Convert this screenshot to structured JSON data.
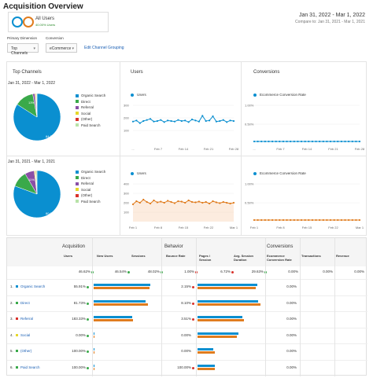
{
  "header": {
    "title": "Acquisition Overview",
    "segment_name": "All Users",
    "segment_sub": "40.00% Users",
    "date_current": "Jan 31, 2022 - Mar 1, 2022",
    "date_compare": "Compare to: Jan 31, 2021 - Mar 1, 2021"
  },
  "controls": {
    "primary_dimension_label": "Primary Dimension",
    "primary_dimension_value": "Top Channels",
    "conversion_label": "Conversion",
    "conversion_value": "eCommerce",
    "edit_link": "Edit Channel Grouping"
  },
  "colors": {
    "blue": "#0a8fd0",
    "orange": "#e07c1e",
    "green": "#3aa94a",
    "light_green": "#8fd06a",
    "purple": "#8a4fa6",
    "yellow": "#e6d82a",
    "red": "#d9322b",
    "pale_green": "#b8e3a8"
  },
  "top_channels": {
    "title": "Top Channels",
    "period1": "Jan 31, 2022 - Mar 1, 2022",
    "period2": "Jan 31, 2021 - Mar 1, 2021",
    "legend": [
      "Organic Search",
      "Direct",
      "Referral",
      "Social",
      "(Other)",
      "Paid Search"
    ],
    "pie1": {
      "slices": [
        84.1,
        13.0,
        1.5,
        0.6,
        0.4,
        0.4
      ],
      "label_big": "84.1%",
      "label_small": "13%"
    },
    "pie2": {
      "slices": [
        80.6,
        11.0,
        6.5,
        0.7,
        0.4,
        0.8
      ],
      "label_big": "80.6%",
      "label_small": "11%"
    }
  },
  "users_panel": {
    "title": "Users",
    "legend": "Users",
    "chart1": {
      "y_ticks": [
        "300",
        "200",
        "100"
      ],
      "x_ticks": [
        "...",
        "Feb 7",
        "Feb 14",
        "Feb 21",
        "Feb 28"
      ],
      "values": [
        205,
        215,
        190,
        210,
        220,
        230,
        205,
        210,
        220,
        200,
        215,
        210,
        205,
        220,
        210,
        215,
        200,
        225,
        215,
        205,
        260,
        210,
        215,
        255,
        205,
        210,
        220,
        200,
        215,
        210
      ]
    },
    "chart2": {
      "y_ticks": [
        "400",
        "300",
        "200",
        "100"
      ],
      "x_ticks": [
        "Feb 1",
        "Feb 8",
        "Feb 15",
        "Feb 22",
        "Mar 1"
      ],
      "values": [
        220,
        260,
        240,
        280,
        250,
        230,
        270,
        245,
        255,
        240,
        265,
        250,
        235,
        260,
        255,
        240,
        270,
        250,
        245,
        255,
        240,
        250,
        230,
        260,
        245,
        235,
        250,
        240,
        230,
        240
      ]
    }
  },
  "conv_panel": {
    "title": "Conversions",
    "legend": "Ecommerce Conversion Rate",
    "chart1": {
      "y_ticks": [
        "1.00%",
        "0.50%"
      ],
      "x_ticks": [
        "...",
        "Feb 7",
        "Feb 14",
        "Feb 21",
        "Feb 28"
      ]
    },
    "chart2": {
      "y_ticks": [
        "1.00%",
        "0.50%"
      ],
      "x_ticks": [
        "Feb 1",
        "Feb 8",
        "Feb 15",
        "Feb 22",
        "Mar 1"
      ]
    }
  },
  "table": {
    "groups": [
      "Acquisition",
      "Behavior",
      "Conversions"
    ],
    "columns": [
      "Users",
      "New Users",
      "Sessions",
      "Bounce Rate",
      "Pages / Session",
      "Avg. Session Duration",
      "Ecommerce Conversion Rate",
      "Transactions",
      "Revenue"
    ],
    "summary": [
      "46.62%",
      "46.54%",
      "48.02%",
      "1.00%",
      "6.72%",
      "29.63%",
      "0.00%",
      "0.00%",
      "0.00%"
    ],
    "rows": [
      {
        "num": "1.",
        "name": "Organic Search",
        "color": "#0a8fd0",
        "users": "55.91%",
        "bounce": "2.15%",
        "conv": "0.00%",
        "b1": [
          0.86,
          0.84
        ],
        "b2": [
          0.54,
          0.56
        ],
        "b3": [
          0.9,
          0.88
        ]
      },
      {
        "num": "2.",
        "name": "Direct",
        "color": "#3aa94a",
        "users": "81.73%",
        "bounce": "8.10%",
        "conv": "0.00%",
        "b1": [
          0.79,
          0.82
        ],
        "b2": [
          0.57,
          0.6
        ],
        "b3": [
          0.92,
          0.95
        ]
      },
      {
        "num": "3.",
        "name": "Referral",
        "color": "#d9322b",
        "users": "183.33%",
        "bounce": "3.51%",
        "conv": "0.00%",
        "b1": [
          0.58,
          0.6
        ],
        "b2": [
          0.44,
          0.46
        ],
        "b3": [
          0.68,
          0.7
        ]
      },
      {
        "num": "4.",
        "name": "Social",
        "color": "#e6d82a",
        "users": "0.00%",
        "bounce": "0.00%",
        "conv": "0.00%",
        "b1": [
          0.01,
          0.01
        ],
        "b2": [
          0.3,
          0.34
        ],
        "b3": [
          0.62,
          0.6
        ]
      },
      {
        "num": "5.",
        "name": "(Other)",
        "color": "#3aa94a",
        "users": "100.00%",
        "bounce": "0.00%",
        "conv": "0.00%",
        "b1": [
          0.01,
          0.01
        ],
        "b2": [
          0.4,
          0.44
        ],
        "b3": [
          0.02,
          0.02
        ]
      },
      {
        "num": "6.",
        "name": "Paid Search",
        "color": "#3aa94a",
        "users": "100.00%",
        "bounce": "100.00%",
        "conv": "0.00%",
        "b1": [
          0.01,
          0.01
        ],
        "b2": [
          0.43,
          0.43
        ],
        "b3": [
          0.02,
          0.02
        ]
      }
    ]
  }
}
